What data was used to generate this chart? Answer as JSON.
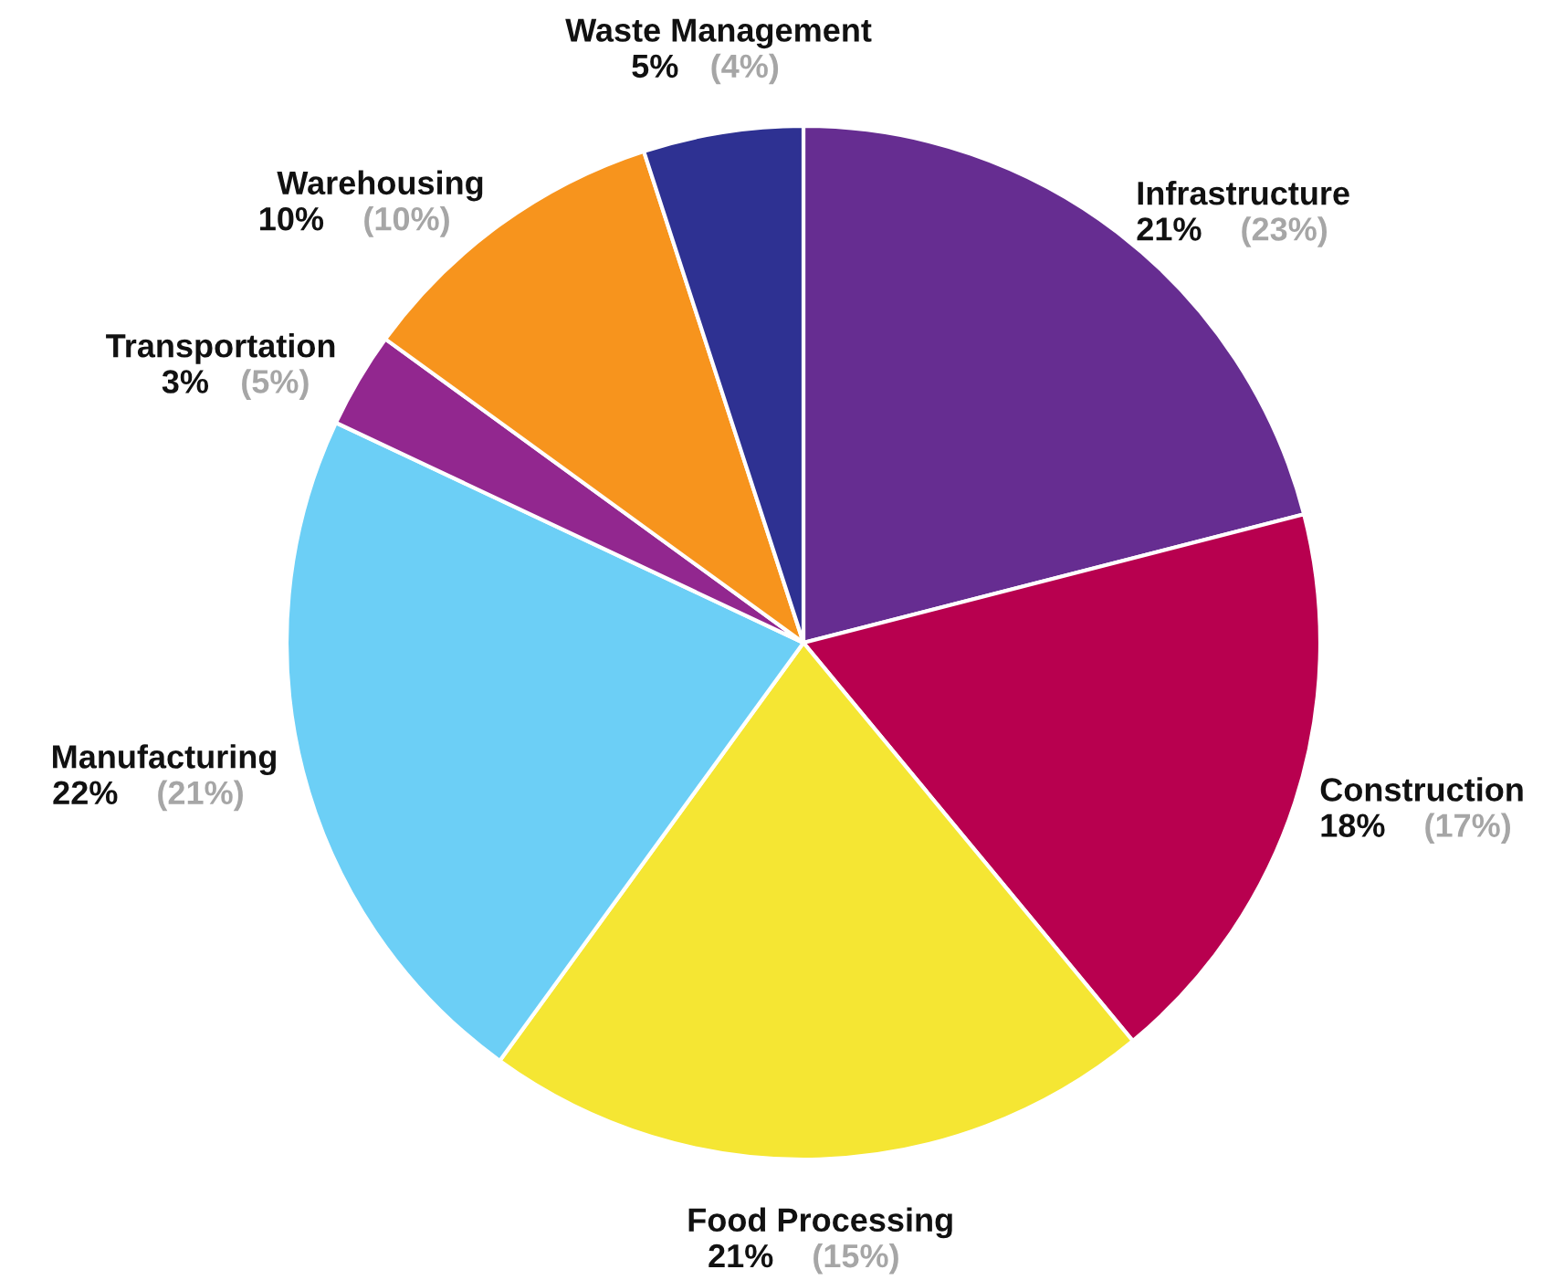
{
  "chart_data": {
    "type": "pie",
    "categories": [
      "Infrastructure",
      "Construction",
      "Food Processing",
      "Manufacturing",
      "Transportation",
      "Warehousing",
      "Waste Management"
    ],
    "values": [
      21,
      18,
      21,
      22,
      3,
      10,
      5
    ],
    "colors": [
      "#662d91",
      "#b8004f",
      "#f5e633",
      "#6ccff6",
      "#92278f",
      "#f7941d",
      "#2e3192"
    ],
    "value_labels": [
      "21%",
      "18%",
      "21%",
      "22%",
      "3%",
      "10%",
      "5%"
    ],
    "annotations": [
      {
        "text": "(23%)",
        "x": "Infrastructure"
      },
      {
        "text": "(17%)",
        "x": "Construction"
      },
      {
        "text": "(15%)",
        "x": "Food Processing"
      },
      {
        "text": "(21%)",
        "x": "Manufacturing"
      },
      {
        "text": "(5%)",
        "x": "Transportation"
      },
      {
        "text": "(10%)",
        "x": "Warehousing"
      },
      {
        "text": "(4%)",
        "x": "Waste Management"
      }
    ]
  }
}
